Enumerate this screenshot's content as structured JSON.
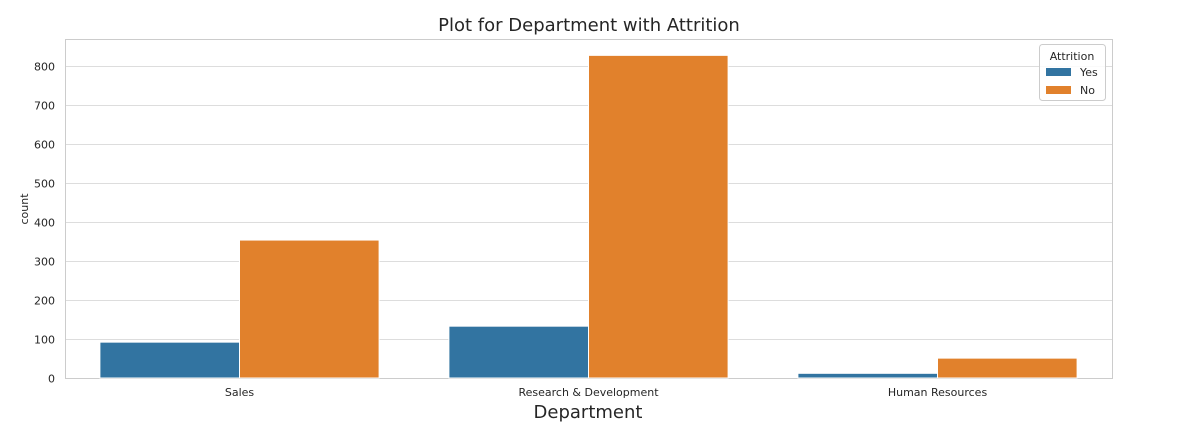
{
  "chart_data": {
    "type": "bar",
    "title": "Plot for Department with Attrition",
    "xlabel": "Department",
    "ylabel": "count",
    "categories": [
      "Sales",
      "Research & Development",
      "Human Resources"
    ],
    "series": [
      {
        "name": "Yes",
        "values": [
          92,
          133,
          12
        ],
        "color": "#3274a1"
      },
      {
        "name": "No",
        "values": [
          354,
          828,
          51
        ],
        "color": "#e1812c"
      }
    ],
    "ylim": [
      0,
      870
    ],
    "yticks": [
      "0",
      "100",
      "200",
      "300",
      "400",
      "500",
      "600",
      "700",
      "800"
    ],
    "grid": true,
    "legend": {
      "title": "Attrition",
      "placement": "top-right"
    }
  }
}
